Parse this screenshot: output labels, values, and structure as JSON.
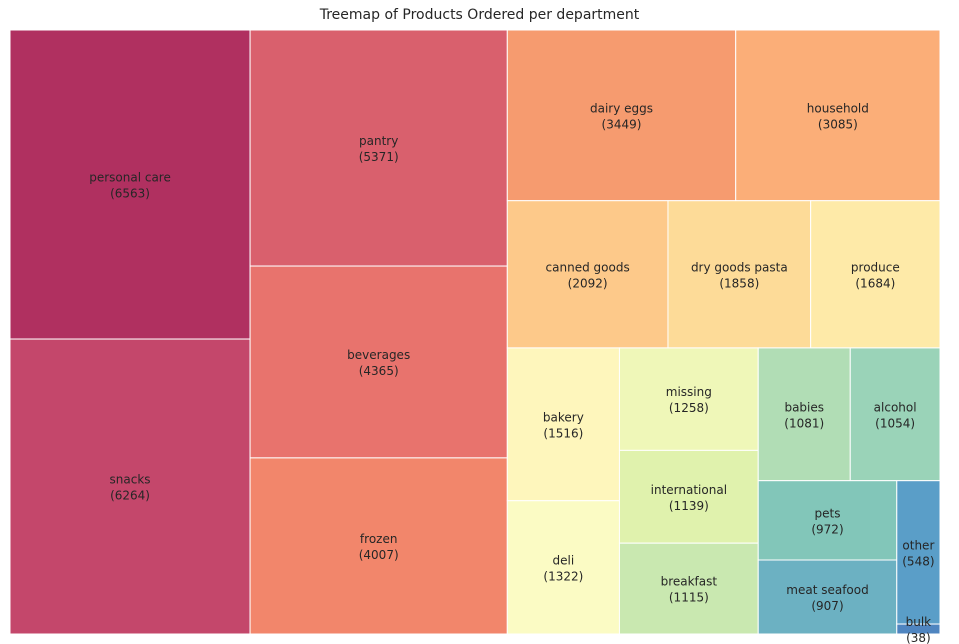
{
  "chart_data": {
    "type": "treemap",
    "title": "Treemap of Products Ordered per department",
    "items": [
      {
        "label": "personal care",
        "value": 6563,
        "color": "#b03060"
      },
      {
        "label": "snacks",
        "value": 6264,
        "color": "#c4476b"
      },
      {
        "label": "pantry",
        "value": 5371,
        "color": "#d9606d"
      },
      {
        "label": "beverages",
        "value": 4365,
        "color": "#e8736d"
      },
      {
        "label": "frozen",
        "value": 4007,
        "color": "#f2866b"
      },
      {
        "label": "dairy eggs",
        "value": 3449,
        "color": "#f69b6f"
      },
      {
        "label": "household",
        "value": 3085,
        "color": "#fbae78"
      },
      {
        "label": "canned goods",
        "value": 2092,
        "color": "#fdc98a"
      },
      {
        "label": "dry goods pasta",
        "value": 1858,
        "color": "#fddb98"
      },
      {
        "label": "produce",
        "value": 1684,
        "color": "#feeaa8"
      },
      {
        "label": "bakery",
        "value": 1516,
        "color": "#fef6bc"
      },
      {
        "label": "deli",
        "value": 1322,
        "color": "#fbfbc4"
      },
      {
        "label": "missing",
        "value": 1258,
        "color": "#eff7b8"
      },
      {
        "label": "international",
        "value": 1139,
        "color": "#e0f2ad"
      },
      {
        "label": "breakfast",
        "value": 1115,
        "color": "#c9e8b0"
      },
      {
        "label": "babies",
        "value": 1081,
        "color": "#b1ddb5"
      },
      {
        "label": "alcohol",
        "value": 1054,
        "color": "#9ad3b8"
      },
      {
        "label": "pets",
        "value": 972,
        "color": "#82c6b9"
      },
      {
        "label": "meat seafood",
        "value": 907,
        "color": "#6cb1c2"
      },
      {
        "label": "other",
        "value": 548,
        "color": "#5a9ec8"
      },
      {
        "label": "bulk",
        "value": 38,
        "color": "#4f85c0"
      }
    ]
  }
}
